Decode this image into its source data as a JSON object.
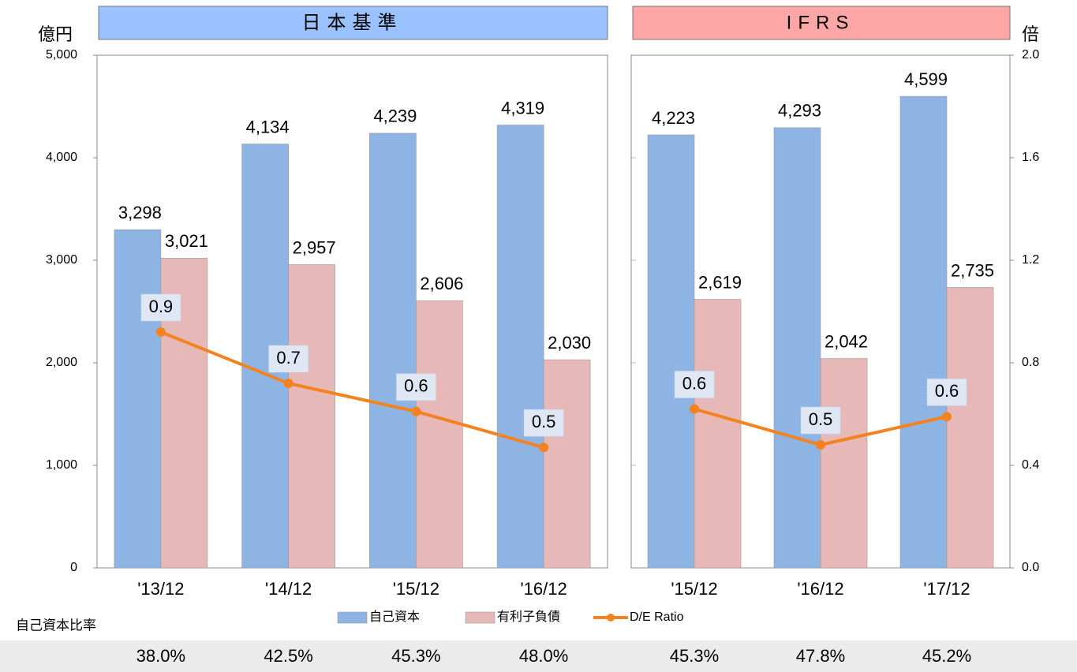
{
  "chart_data": [
    {
      "type": "bar",
      "title": "日本基準",
      "y_label": "億円",
      "categories": [
        "'13/12",
        "'14/12",
        "'15/12",
        "'16/12"
      ],
      "ylim": [
        0,
        5000
      ],
      "yticks": [
        0,
        {
          "value": 1000,
          "label": "1,000"
        },
        {
          "value": 2000,
          "label": "2,000"
        },
        {
          "value": 3000,
          "label": "3,000"
        },
        {
          "value": 4000,
          "label": "4,000"
        },
        {
          "value": 5000,
          "label": "5,000"
        }
      ],
      "series": [
        {
          "name": "自己資本",
          "color": "#8eb4e3",
          "values": [
            3298,
            4134,
            4239,
            4319
          ],
          "value_labels": [
            "3,298",
            "4,134",
            "4,239",
            "4,319"
          ]
        },
        {
          "name": "有利子負債",
          "color": "#e6b9b8",
          "values": [
            3021,
            2957,
            2606,
            2030
          ],
          "value_labels": [
            "3,021",
            "2,957",
            "2,606",
            "2,030"
          ]
        },
        {
          "name": "D/E Ratio",
          "type": "line",
          "axis": "y2",
          "color": "#f58220",
          "values": [
            0.92,
            0.72,
            0.61,
            0.47
          ],
          "value_labels": [
            "0.9",
            "0.7",
            "0.6",
            "0.5"
          ]
        }
      ]
    },
    {
      "type": "bar",
      "title": "IFRS",
      "y2_label": "倍",
      "categories": [
        "'15/12",
        "'16/12",
        "'17/12"
      ],
      "y2lim": [
        0,
        2
      ],
      "y2ticks": [
        {
          "value": 0,
          "label": "0.0"
        },
        0.4,
        0.8,
        1.2,
        1.6,
        {
          "value": 2,
          "label": "2.0"
        }
      ],
      "series": [
        {
          "color": "#8eb4e3",
          "values": [
            4223,
            4293,
            4599
          ],
          "value_labels": [
            "4,223",
            "4,293",
            "4,599"
          ]
        },
        {
          "color": "#e6b9b8",
          "values": [
            2619,
            2042,
            2735
          ],
          "value_labels": [
            "2,619",
            "2,042",
            "2,735"
          ]
        },
        {
          "type": "line",
          "axis": "y2",
          "color": "#f58220",
          "values": [
            0.62,
            0.48,
            0.59
          ],
          "value_labels": [
            "0.6",
            "0.5",
            "0.6"
          ]
        }
      ]
    }
  ],
  "equity_ratio": {
    "label": "自己資本比率",
    "values": [
      38.0,
      42.5,
      45.3,
      48.0,
      45.3,
      47.8,
      45.2
    ],
    "value_labels": [
      "38.0%",
      "42.5%",
      "45.3%",
      "48.0%",
      "45.3%",
      "47.8%",
      "45.2%"
    ]
  }
}
